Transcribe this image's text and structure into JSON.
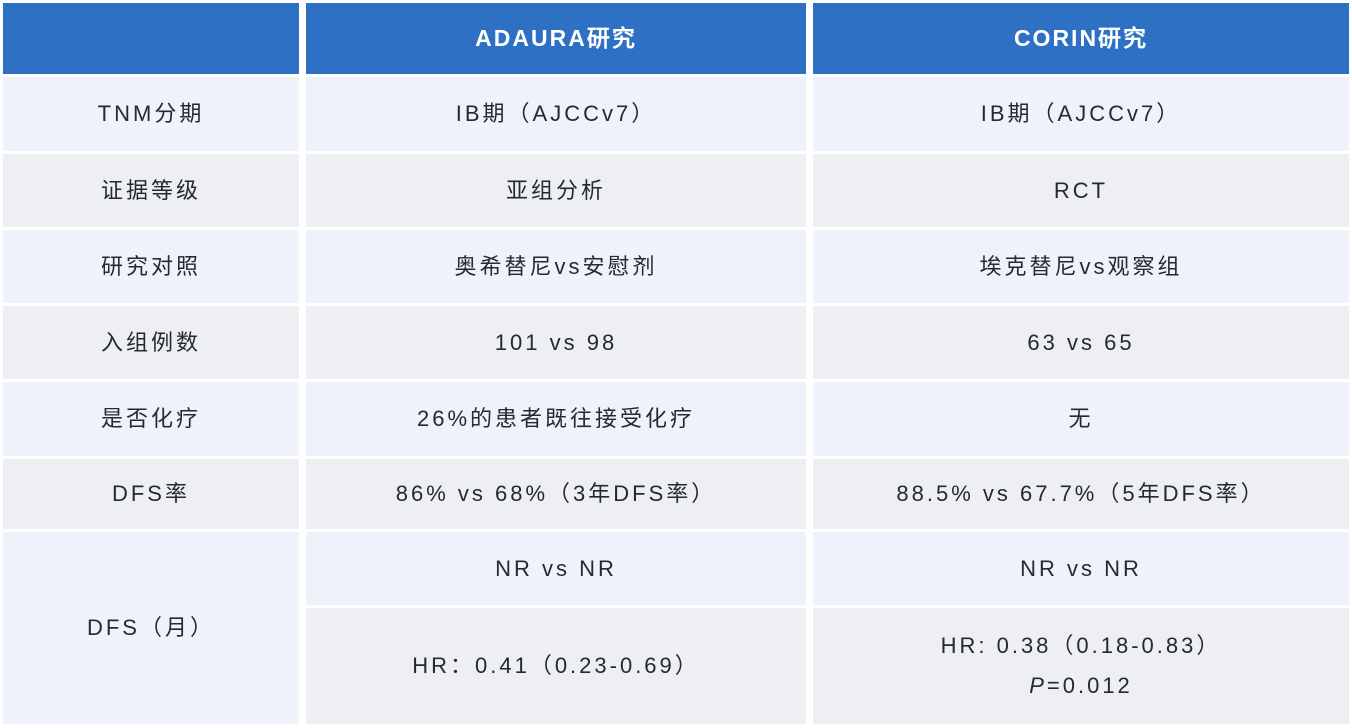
{
  "table": {
    "columns": {
      "blank": "",
      "adaura": "ADAURA研究",
      "corin": "CORIN研究"
    },
    "rows": [
      {
        "label": "TNM分期",
        "adaura": "IB期（AJCCv7）",
        "corin": "IB期（AJCCv7）"
      },
      {
        "label": "证据等级",
        "adaura": "亚组分析",
        "corin": "RCT"
      },
      {
        "label": "研究对照",
        "adaura": "奥希替尼vs安慰剂",
        "corin": "埃克替尼vs观察组"
      },
      {
        "label": "入组例数",
        "adaura": "101 vs 98",
        "corin": "63 vs 65"
      },
      {
        "label": "是否化疗",
        "adaura": "26%的患者既往接受化疗",
        "corin": "无"
      },
      {
        "label": "DFS率",
        "adaura": "86% vs 68%（3年DFS率）",
        "corin": "88.5% vs 67.7%（5年DFS率）"
      }
    ],
    "dfs_group": {
      "label": "DFS（月）",
      "nr_adaura": "NR vs NR",
      "nr_corin": "NR vs NR",
      "hr_adaura": "HR：0.41（0.23-0.69）",
      "hr_corin_line1": "HR: 0.38（0.18-0.83）",
      "p_label": "P",
      "p_value": "=0.012"
    },
    "colors": {
      "header_bg": "#2e70c4",
      "header_text": "#ffffff",
      "stripe_blue": "#edf2fb",
      "stripe_gray": "#edeff3",
      "body_text": "#242932"
    }
  }
}
